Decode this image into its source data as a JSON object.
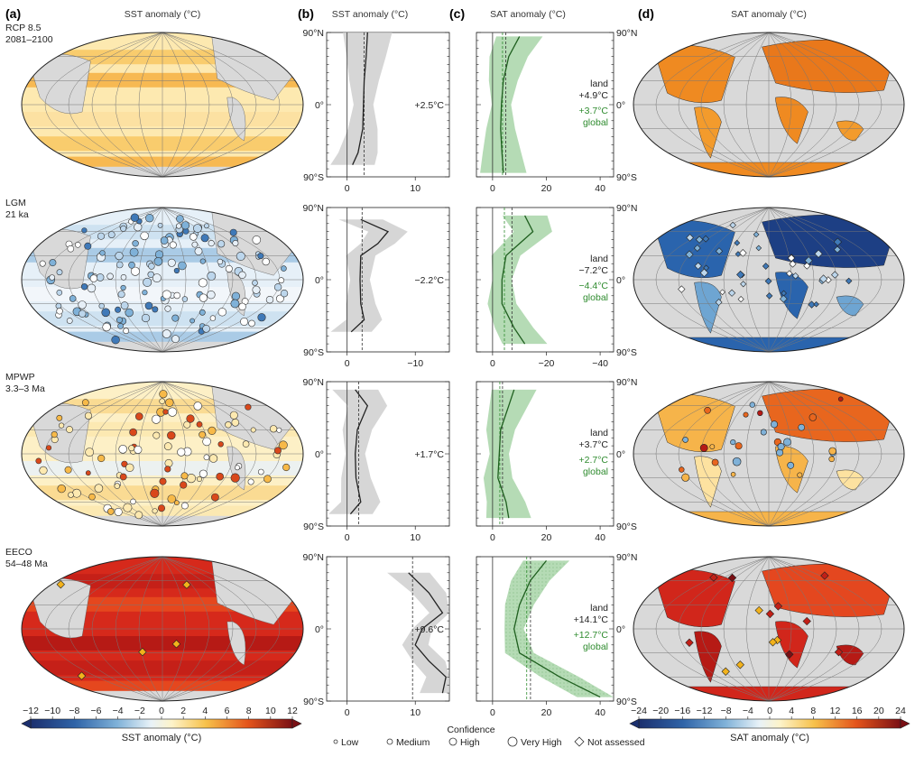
{
  "panels": {
    "a": "(a)",
    "b": "(b)",
    "c": "(c)",
    "d": "(d)"
  },
  "headers": {
    "a": "SST anomaly (°C)",
    "b": "SST anomaly (°C)",
    "c": "SAT anomaly (°C)",
    "d": "SAT anomaly (°C)"
  },
  "lat_labels": {
    "north": "90°N",
    "equator": "0°",
    "south": "90°S"
  },
  "rows": [
    {
      "name": "RCP 8.5",
      "period": "2081–2100",
      "sst_mean": "+2.5°C",
      "land_label": "land",
      "land_val": "+4.9°C",
      "global_val": "+3.7°C",
      "global_label": "global",
      "b_ticks": [
        "0",
        "10"
      ],
      "c_ticks": [
        "0",
        "20",
        "40"
      ]
    },
    {
      "name": "LGM",
      "period": "21 ka",
      "sst_mean": "−2.2°C",
      "land_label": "land",
      "land_val": "−7.2°C",
      "global_val": "−4.4°C",
      "global_label": "global",
      "b_ticks": [
        "0",
        "−10"
      ],
      "c_ticks": [
        "0",
        "−20",
        "−40"
      ]
    },
    {
      "name": "MPWP",
      "period": "3.3–3 Ma",
      "sst_mean": "+1.7°C",
      "land_label": "land",
      "land_val": "+3.7°C",
      "global_val": "+2.7°C",
      "global_label": "global",
      "b_ticks": [
        "0",
        "10"
      ],
      "c_ticks": [
        "0",
        "20",
        "40"
      ]
    },
    {
      "name": "EECO",
      "period": "54–48 Ma",
      "sst_mean": "+9.6°C",
      "land_label": "land",
      "land_val": "+14.1°C",
      "global_val": "+12.7°C",
      "global_label": "global",
      "b_ticks": [
        "0",
        "10"
      ],
      "c_ticks": [
        "0",
        "20",
        "40"
      ]
    }
  ],
  "legend": {
    "sst_ticks": [
      "−12",
      "−10",
      "−8",
      "−6",
      "−4",
      "−2",
      "0",
      "2",
      "4",
      "6",
      "8",
      "10",
      "12"
    ],
    "sst_title": "SST anomaly (°C)",
    "sat_ticks": [
      "−24",
      "−20",
      "−16",
      "−12",
      "−8",
      "−4",
      "0",
      "4",
      "8",
      "12",
      "16",
      "20",
      "24"
    ],
    "sat_title": "SAT anomaly (°C)",
    "confidence_title": "Confidence",
    "confidence_items": [
      "Low",
      "Medium",
      "High",
      "Very High",
      "Not assessed"
    ]
  },
  "colors": {
    "land_gray": "#d9d9d9",
    "envelope_gray": "#cfcfcf",
    "sat_green": "#2e8b2e",
    "envelope_green": "#a8d5a8"
  },
  "chart_data": [
    {
      "type": "line",
      "panel": "b",
      "xlabel": "SST anomaly (°C)",
      "ylabel_ticks": [
        "90°N",
        "0°",
        "90°S"
      ],
      "series": [
        {
          "row": "RCP 8.5",
          "lat": [
            90,
            60,
            30,
            0,
            -30,
            -60,
            -75
          ],
          "anomaly": [
            3.0,
            2.8,
            2.5,
            2.4,
            2.3,
            1.6,
            0.8
          ],
          "global_mean": 2.5
        },
        {
          "row": "LGM",
          "lat": [
            75,
            60,
            45,
            30,
            0,
            -30,
            -50,
            -65
          ],
          "anomaly": [
            -2.0,
            -6.0,
            -4.5,
            -2.0,
            -1.9,
            -2.0,
            -2.5,
            -0.6
          ],
          "global_mean": -2.2
        },
        {
          "row": "MPWP",
          "lat": [
            80,
            60,
            30,
            0,
            -30,
            -60,
            -75
          ],
          "anomaly": [
            1.2,
            3.0,
            1.5,
            1.2,
            1.3,
            2.0,
            0.5
          ],
          "global_mean": 1.7
        },
        {
          "row": "EECO",
          "lat": [
            70,
            45,
            20,
            0,
            -20,
            -40,
            -60,
            -80
          ],
          "anomaly": [
            9.0,
            12.0,
            14.0,
            11.0,
            10.0,
            12.0,
            14.5,
            14.0
          ],
          "global_mean": 9.6
        }
      ]
    },
    {
      "type": "line",
      "panel": "c",
      "xlabel": "SAT anomaly (°C)",
      "ylabel_ticks": [
        "90°N",
        "0°",
        "90°S"
      ],
      "series": [
        {
          "row": "RCP 8.5",
          "lat": [
            85,
            60,
            30,
            0,
            -30,
            -60,
            -85
          ],
          "anomaly": [
            10.0,
            6.0,
            4.0,
            3.3,
            3.0,
            3.5,
            4.0
          ],
          "land_mean": 4.9,
          "global_mean": 3.7
        },
        {
          "row": "LGM",
          "lat": [
            80,
            60,
            45,
            30,
            0,
            -30,
            -60,
            -80
          ],
          "anomaly": [
            -12.0,
            -15.0,
            -10.0,
            -5.0,
            -3.5,
            -3.5,
            -8.0,
            -12.0
          ],
          "land_mean": -7.2,
          "global_mean": -4.4
        },
        {
          "row": "MPWP",
          "lat": [
            80,
            60,
            30,
            0,
            -30,
            -60,
            -80
          ],
          "anomaly": [
            8.0,
            6.0,
            3.0,
            2.5,
            2.0,
            5.0,
            6.0
          ],
          "land_mean": 3.7,
          "global_mean": 2.7
        },
        {
          "row": "EECO",
          "lat": [
            85,
            60,
            30,
            0,
            -30,
            -60,
            -85
          ],
          "anomaly": [
            20.0,
            14.0,
            10.0,
            8.0,
            10.0,
            25.0,
            40.0
          ],
          "land_mean": 14.1,
          "global_mean": 12.7
        }
      ]
    },
    {
      "type": "heatmap",
      "panel": "a",
      "description_units": "SST anomaly (°C)",
      "colorbar_range": [
        -12,
        12
      ]
    },
    {
      "type": "heatmap",
      "panel": "d",
      "description_units": "SAT anomaly (°C)",
      "colorbar_range": [
        -24,
        24
      ]
    }
  ]
}
